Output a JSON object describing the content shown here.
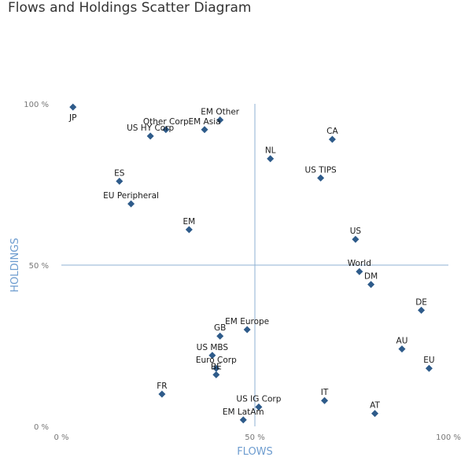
{
  "chart_data": {
    "type": "scatter",
    "title": "Flows and Holdings Scatter Diagram",
    "xlabel": "FLOWS",
    "ylabel": "HOLDINGS",
    "xlim": [
      0,
      100
    ],
    "ylim": [
      0,
      100
    ],
    "x_ticks": [
      0,
      50,
      100
    ],
    "y_ticks": [
      0,
      50,
      100
    ],
    "x_tick_labels": [
      "0 %",
      "50 %",
      "100 %"
    ],
    "y_tick_labels": [
      "0 %",
      "50 %",
      "100 %"
    ],
    "crosshair": {
      "x": 50,
      "y": 50
    },
    "grid": false,
    "marker": "diamond",
    "color": "#2e5b8a",
    "axis_line_color": "#8fb0d3",
    "points": [
      {
        "label": "JP",
        "x": 3,
        "y": 99
      },
      {
        "label": "EM Other",
        "x": 41,
        "y": 95
      },
      {
        "label": "Other Corp",
        "x": 27,
        "y": 92
      },
      {
        "label": "EM Asia",
        "x": 37,
        "y": 92
      },
      {
        "label": "US HY Corp",
        "x": 23,
        "y": 90
      },
      {
        "label": "CA",
        "x": 70,
        "y": 89
      },
      {
        "label": "NL",
        "x": 54,
        "y": 83
      },
      {
        "label": "US TIPS",
        "x": 67,
        "y": 77
      },
      {
        "label": "ES",
        "x": 15,
        "y": 76
      },
      {
        "label": "EU Peripheral",
        "x": 18,
        "y": 69
      },
      {
        "label": "EM",
        "x": 33,
        "y": 61
      },
      {
        "label": "US",
        "x": 76,
        "y": 58
      },
      {
        "label": "World",
        "x": 77,
        "y": 48
      },
      {
        "label": "DM",
        "x": 80,
        "y": 44
      },
      {
        "label": "DE",
        "x": 93,
        "y": 36
      },
      {
        "label": "EM Europe",
        "x": 48,
        "y": 30
      },
      {
        "label": "GB",
        "x": 41,
        "y": 28
      },
      {
        "label": "AU",
        "x": 88,
        "y": 24
      },
      {
        "label": "US MBS",
        "x": 39,
        "y": 22
      },
      {
        "label": "EU",
        "x": 95,
        "y": 18
      },
      {
        "label": "Euro Corp",
        "x": 40,
        "y": 18
      },
      {
        "label": "BE",
        "x": 40,
        "y": 16
      },
      {
        "label": "FR",
        "x": 26,
        "y": 10
      },
      {
        "label": "IT",
        "x": 68,
        "y": 8
      },
      {
        "label": "US IG Corp",
        "x": 51,
        "y": 6
      },
      {
        "label": "AT",
        "x": 81,
        "y": 4
      },
      {
        "label": "EM LatAm",
        "x": 47,
        "y": 2
      }
    ]
  }
}
